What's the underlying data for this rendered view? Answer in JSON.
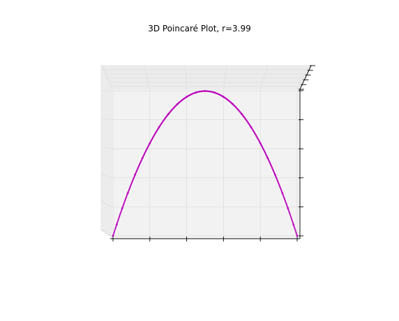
{
  "chart_data": {
    "type": "scatter",
    "title": "3D Poincaré Plot, r=3.99",
    "xlabel": "",
    "ylabel": "",
    "zlabel": "",
    "projection": "3d",
    "view": "elevated front view, looking slightly down",
    "xlim": [
      0,
      1
    ],
    "ylim": [
      0,
      1
    ],
    "zlim": [
      0,
      1
    ],
    "map": "logistic map x[n+1] = r*x[n]*(1-x[n])",
    "r": 3.99,
    "series": [
      {
        "color": "#bb00bb",
        "x": [
          0.0,
          0.02,
          0.05,
          0.08,
          0.12,
          0.16,
          0.2,
          0.25,
          0.3,
          0.35,
          0.4,
          0.45,
          0.5,
          0.55,
          0.6,
          0.65,
          0.7,
          0.75,
          0.8,
          0.84,
          0.88,
          0.92,
          0.95,
          0.98,
          1.0
        ],
        "y": [
          0.0,
          0.078,
          0.19,
          0.294,
          0.421,
          0.536,
          0.638,
          0.748,
          0.838,
          0.908,
          0.958,
          0.988,
          0.998,
          0.988,
          0.958,
          0.908,
          0.838,
          0.748,
          0.638,
          0.536,
          0.421,
          0.294,
          0.19,
          0.078,
          0.0
        ]
      }
    ],
    "grid": true
  },
  "colors": {
    "points": "#bb00bb",
    "pane": "#f2f2f2",
    "pane_dark": "#ececec",
    "grid": "#dedede",
    "axis": "#000000"
  }
}
